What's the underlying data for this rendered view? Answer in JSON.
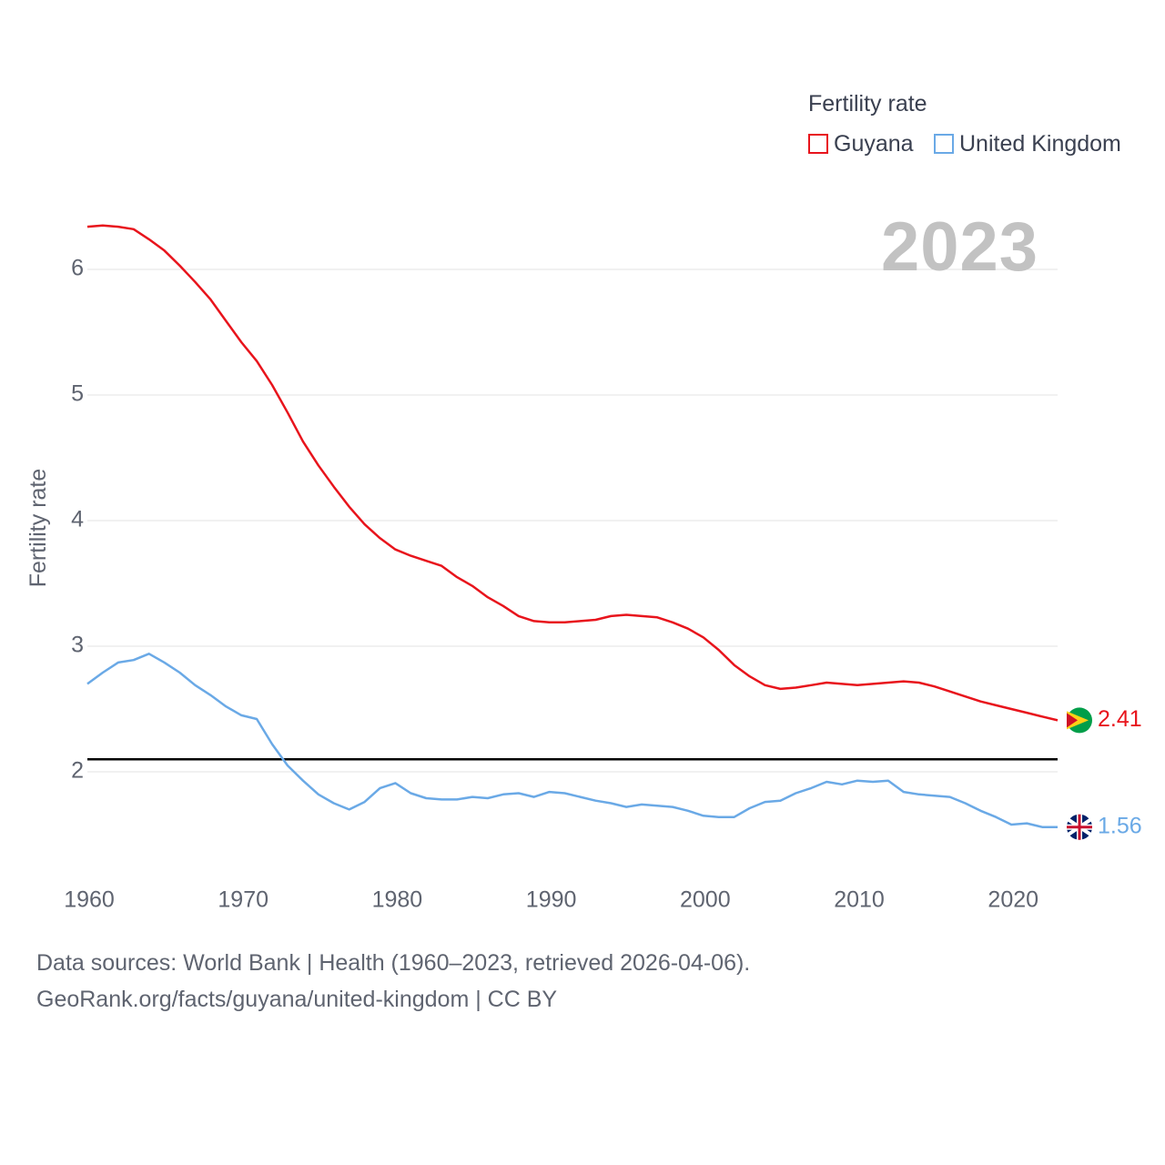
{
  "legend": {
    "title": "Fertility rate",
    "items": [
      {
        "name": "Guyana",
        "color": "#e8141c"
      },
      {
        "name": "United Kingdom",
        "color": "#6aa9e6"
      }
    ]
  },
  "year_label": "2023",
  "end_labels": {
    "guyana": "2.41",
    "united_kingdom": "1.56"
  },
  "source": {
    "line1": "Data sources: World Bank | Health (1960–2023, retrieved 2026-04-06).",
    "line2": "GeoRank.org/facts/guyana/united-kingdom | CC BY"
  },
  "chart_data": {
    "type": "line",
    "title": "Fertility rate",
    "xlabel": "",
    "ylabel": "Fertility rate",
    "xlim": [
      1960,
      2023
    ],
    "ylim": [
      1.4,
      6.4
    ],
    "x_ticks": [
      1960,
      1970,
      1980,
      1990,
      2000,
      2010,
      2020
    ],
    "y_ticks": [
      2,
      3,
      4,
      5,
      6
    ],
    "grid": true,
    "reference_line": {
      "y": 2.1,
      "color": "#000000"
    },
    "x": [
      1960,
      1961,
      1962,
      1963,
      1964,
      1965,
      1966,
      1967,
      1968,
      1969,
      1970,
      1971,
      1972,
      1973,
      1974,
      1975,
      1976,
      1977,
      1978,
      1979,
      1980,
      1981,
      1982,
      1983,
      1984,
      1985,
      1986,
      1987,
      1988,
      1989,
      1990,
      1991,
      1992,
      1993,
      1994,
      1995,
      1996,
      1997,
      1998,
      1999,
      2000,
      2001,
      2002,
      2003,
      2004,
      2005,
      2006,
      2007,
      2008,
      2009,
      2010,
      2011,
      2012,
      2013,
      2014,
      2015,
      2016,
      2017,
      2018,
      2019,
      2020,
      2021,
      2022,
      2023
    ],
    "series": [
      {
        "name": "Guyana",
        "color": "#e8141c",
        "end_label": "2.41",
        "values": [
          6.34,
          6.35,
          6.34,
          6.32,
          6.24,
          6.15,
          6.03,
          5.9,
          5.76,
          5.59,
          5.42,
          5.27,
          5.08,
          4.86,
          4.63,
          4.44,
          4.27,
          4.11,
          3.97,
          3.86,
          3.77,
          3.72,
          3.68,
          3.64,
          3.55,
          3.48,
          3.39,
          3.32,
          3.24,
          3.2,
          3.19,
          3.19,
          3.2,
          3.21,
          3.24,
          3.25,
          3.24,
          3.23,
          3.19,
          3.14,
          3.07,
          2.97,
          2.85,
          2.76,
          2.69,
          2.66,
          2.67,
          2.69,
          2.71,
          2.7,
          2.69,
          2.7,
          2.71,
          2.72,
          2.71,
          2.68,
          2.64,
          2.6,
          2.56,
          2.53,
          2.5,
          2.47,
          2.44,
          2.41
        ]
      },
      {
        "name": "United Kingdom",
        "color": "#6aa9e6",
        "end_label": "1.56",
        "values": [
          2.7,
          2.79,
          2.87,
          2.89,
          2.94,
          2.87,
          2.79,
          2.69,
          2.61,
          2.52,
          2.45,
          2.42,
          2.22,
          2.05,
          1.93,
          1.82,
          1.75,
          1.7,
          1.76,
          1.87,
          1.91,
          1.83,
          1.79,
          1.78,
          1.78,
          1.8,
          1.79,
          1.82,
          1.83,
          1.8,
          1.84,
          1.83,
          1.8,
          1.77,
          1.75,
          1.72,
          1.74,
          1.73,
          1.72,
          1.69,
          1.65,
          1.64,
          1.64,
          1.71,
          1.76,
          1.77,
          1.83,
          1.87,
          1.92,
          1.9,
          1.93,
          1.92,
          1.93,
          1.84,
          1.82,
          1.81,
          1.8,
          1.75,
          1.69,
          1.64,
          1.58,
          1.59,
          1.56,
          1.56
        ]
      }
    ]
  }
}
